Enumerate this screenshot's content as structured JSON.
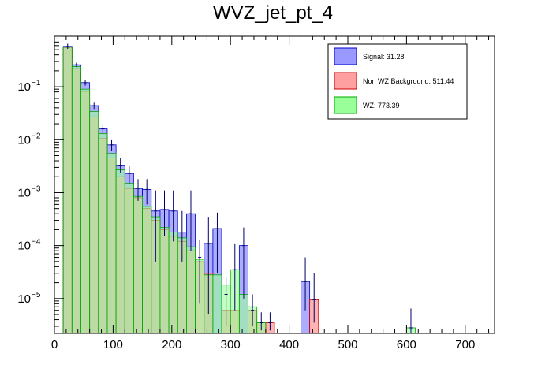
{
  "chart_data": {
    "type": "histogram",
    "title": "WVZ_jet_pt_4",
    "xlabel": "",
    "ylabel": "",
    "xlim": [
      0,
      750
    ],
    "ylim": [
      2.2e-06,
      0.9
    ],
    "y_scale": "log",
    "x_ticks": [
      0,
      100,
      200,
      300,
      400,
      500,
      600,
      700
    ],
    "x_tick_labels": [
      "0",
      "100",
      "200",
      "300",
      "400",
      "500",
      "600",
      "700"
    ],
    "y_ticks": [
      1e-05,
      0.0001,
      0.001,
      0.01,
      0.1
    ],
    "y_tick_labels": [
      {
        "base": "10",
        "exp": "−5"
      },
      {
        "base": "10",
        "exp": "−4"
      },
      {
        "base": "10",
        "exp": "−3"
      },
      {
        "base": "10",
        "exp": "−2"
      },
      {
        "base": "10",
        "exp": "−1"
      }
    ],
    "bin_width": 15,
    "bin_start": 15,
    "legend": [
      {
        "label": "Signal: 31.28",
        "fill": "#9999ff",
        "edge": "#0000cc"
      },
      {
        "label": "Non WZ Background: 511.44",
        "fill": "#ffa0a0",
        "edge": "#cc0000"
      },
      {
        "label": "WZ: 773.39",
        "fill": "#99ff99",
        "edge": "#00aa00"
      }
    ],
    "series": [
      {
        "name": "Signal: 31.28",
        "fill": "#9999ff",
        "edge": "#0000cc",
        "opacity": 0.8,
        "bins": [
          {
            "x": 15,
            "y": 0.58
          },
          {
            "x": 30,
            "y": 0.26
          },
          {
            "x": 45,
            "y": 0.12
          },
          {
            "x": 60,
            "y": 0.044
          },
          {
            "x": 75,
            "y": 0.016
          },
          {
            "x": 90,
            "y": 0.008
          },
          {
            "x": 105,
            "y": 0.0033
          },
          {
            "x": 120,
            "y": 0.0023
          },
          {
            "x": 135,
            "y": 0.0012
          },
          {
            "x": 150,
            "y": 0.00115
          },
          {
            "x": 165,
            "y": 0.00045
          },
          {
            "x": 180,
            "y": 0.00048
          },
          {
            "x": 195,
            "y": 0.00045
          },
          {
            "x": 210,
            "y": 0.00018
          },
          {
            "x": 225,
            "y": 0.0004
          },
          {
            "x": 255,
            "y": 0.00011
          },
          {
            "x": 270,
            "y": 0.00021
          },
          {
            "x": 315,
            "y": 0.0001
          },
          {
            "x": 420,
            "y": 2.1e-05
          }
        ]
      },
      {
        "name": "Non WZ Background: 511.44",
        "fill": "#ffa0a0",
        "edge": "#cc0000",
        "opacity": 0.8,
        "bins": [
          {
            "x": 15,
            "y": 0.55
          },
          {
            "x": 30,
            "y": 0.22
          },
          {
            "x": 45,
            "y": 0.082
          },
          {
            "x": 60,
            "y": 0.027
          },
          {
            "x": 75,
            "y": 0.0105
          },
          {
            "x": 90,
            "y": 0.0045
          },
          {
            "x": 105,
            "y": 0.002
          },
          {
            "x": 120,
            "y": 0.0012
          },
          {
            "x": 135,
            "y": 0.0008
          },
          {
            "x": 150,
            "y": 0.0005
          },
          {
            "x": 165,
            "y": 0.0003
          },
          {
            "x": 180,
            "y": 0.0002
          },
          {
            "x": 195,
            "y": 0.00015
          },
          {
            "x": 210,
            "y": 0.00012
          },
          {
            "x": 225,
            "y": 8e-05
          },
          {
            "x": 240,
            "y": 5e-05
          },
          {
            "x": 255,
            "y": 3e-05
          },
          {
            "x": 285,
            "y": 6e-06
          },
          {
            "x": 300,
            "y": 6e-06
          },
          {
            "x": 330,
            "y": 6e-06
          },
          {
            "x": 345,
            "y": 3.5e-06
          },
          {
            "x": 360,
            "y": 3.5e-06
          },
          {
            "x": 435,
            "y": 9.5e-06
          }
        ]
      },
      {
        "name": "WZ: 773.39",
        "fill": "#99ff99",
        "edge": "#00aa00",
        "opacity": 0.6,
        "bins": [
          {
            "x": 15,
            "y": 0.56
          },
          {
            "x": 30,
            "y": 0.24
          },
          {
            "x": 45,
            "y": 0.09
          },
          {
            "x": 60,
            "y": 0.034
          },
          {
            "x": 75,
            "y": 0.013
          },
          {
            "x": 90,
            "y": 0.0055
          },
          {
            "x": 105,
            "y": 0.0027
          },
          {
            "x": 120,
            "y": 0.0015
          },
          {
            "x": 135,
            "y": 0.00085
          },
          {
            "x": 150,
            "y": 0.00055
          },
          {
            "x": 165,
            "y": 0.00035
          },
          {
            "x": 180,
            "y": 0.00022
          },
          {
            "x": 195,
            "y": 0.00018
          },
          {
            "x": 210,
            "y": 0.00014
          },
          {
            "x": 225,
            "y": 9.5e-05
          },
          {
            "x": 240,
            "y": 5.5e-05
          },
          {
            "x": 255,
            "y": 2.8e-05
          },
          {
            "x": 270,
            "y": 2.8e-05
          },
          {
            "x": 285,
            "y": 1.8e-05
          },
          {
            "x": 300,
            "y": 3.5e-05
          },
          {
            "x": 315,
            "y": 1.2e-05
          },
          {
            "x": 330,
            "y": 7e-06
          },
          {
            "x": 345,
            "y": 3.5e-06
          },
          {
            "x": 600,
            "y": 2.8e-06
          }
        ]
      }
    ],
    "error_bars": [
      {
        "x": 22.5,
        "y": 0.58,
        "lo": 0.52,
        "hi": 0.65
      },
      {
        "x": 37.5,
        "y": 0.26,
        "lo": 0.235,
        "hi": 0.285
      },
      {
        "x": 52.5,
        "y": 0.12,
        "lo": 0.105,
        "hi": 0.135
      },
      {
        "x": 67.5,
        "y": 0.044,
        "lo": 0.038,
        "hi": 0.05
      },
      {
        "x": 82.5,
        "y": 0.016,
        "lo": 0.013,
        "hi": 0.019
      },
      {
        "x": 97.5,
        "y": 0.008,
        "lo": 0.0062,
        "hi": 0.0098
      },
      {
        "x": 112.5,
        "y": 0.0033,
        "lo": 0.0024,
        "hi": 0.0045
      },
      {
        "x": 127.5,
        "y": 0.0023,
        "lo": 0.0015,
        "hi": 0.0032
      },
      {
        "x": 142.5,
        "y": 0.0012,
        "lo": 0.0007,
        "hi": 0.0018
      },
      {
        "x": 157.5,
        "y": 0.00115,
        "lo": 0.0006,
        "hi": 0.0018
      },
      {
        "x": 172.5,
        "y": 0.00045,
        "lo": 5e-05,
        "hi": 0.0011
      },
      {
        "x": 187.5,
        "y": 0.00048,
        "lo": 0.00015,
        "hi": 0.0011
      },
      {
        "x": 202.5,
        "y": 0.00045,
        "lo": 0.00012,
        "hi": 0.0011
      },
      {
        "x": 217.5,
        "y": 0.00018,
        "lo": 5e-05,
        "hi": 0.00045
      },
      {
        "x": 232.5,
        "y": 0.0004,
        "lo": 8e-05,
        "hi": 0.0011
      },
      {
        "x": 247.5,
        "y": 6e-05,
        "lo": 8e-06,
        "hi": 0.00013
      },
      {
        "x": 262.5,
        "y": 0.00011,
        "lo": 5e-06,
        "hi": 0.00035
      },
      {
        "x": 277.5,
        "y": 0.00021,
        "lo": 3e-05,
        "hi": 0.00042
      },
      {
        "x": 292.5,
        "y": 1.2e-05,
        "lo": 3e-06,
        "hi": 2.5e-05
      },
      {
        "x": 307.5,
        "y": 3.5e-05,
        "lo": 6e-06,
        "hi": 0.00011
      },
      {
        "x": 322.5,
        "y": 0.0001,
        "lo": 1e-05,
        "hi": 0.00022
      },
      {
        "x": 337.5,
        "y": 6e-06,
        "lo": 3e-06,
        "hi": 1.2e-05
      },
      {
        "x": 352.5,
        "y": 3.5e-06,
        "lo": 2.5e-06,
        "hi": 5.5e-06
      },
      {
        "x": 367.5,
        "y": 3.5e-06,
        "lo": 2.5e-06,
        "hi": 5.5e-06
      },
      {
        "x": 427.5,
        "y": 2.1e-05,
        "lo": 6e-06,
        "hi": 6e-05
      },
      {
        "x": 442.5,
        "y": 9.5e-06,
        "lo": 3.5e-06,
        "hi": 3e-05
      },
      {
        "x": 607.5,
        "y": 2.8e-06,
        "lo": 2.2e-06,
        "hi": 6.5e-06
      }
    ]
  }
}
